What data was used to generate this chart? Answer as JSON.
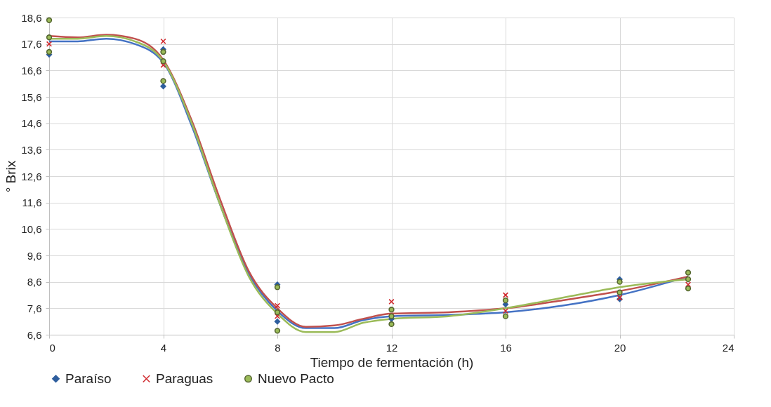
{
  "chart_data": {
    "type": "scatter",
    "xlabel": "Tiempo de fermentación (h)",
    "ylabel": "° Brix",
    "xlim": [
      0,
      24
    ],
    "xticks": [
      0,
      4,
      8,
      12,
      16,
      20,
      24
    ],
    "ylim": [
      6.6,
      18.6
    ],
    "yticks": [
      {
        "value": 6.6,
        "label": "6,6"
      },
      {
        "value": 7.6,
        "label": "7,6"
      },
      {
        "value": 8.6,
        "label": "8,6"
      },
      {
        "value": 9.6,
        "label": "9,6"
      },
      {
        "value": 10.6,
        "label": "10,6"
      },
      {
        "value": 11.6,
        "label": "11,6"
      },
      {
        "value": 12.6,
        "label": "12,6"
      },
      {
        "value": 13.6,
        "label": "13,6"
      },
      {
        "value": 14.6,
        "label": "14,6"
      },
      {
        "value": 15.6,
        "label": "15,6"
      },
      {
        "value": 16.6,
        "label": "16,6"
      },
      {
        "value": 17.6,
        "label": "17,6"
      },
      {
        "value": 18.6,
        "label": "18,6"
      }
    ],
    "grid": true,
    "legend": "bottom",
    "series": [
      {
        "type": "line",
        "color": "#4472c4",
        "x": [
          0,
          1,
          2,
          3,
          4,
          5,
          6,
          7,
          8,
          9,
          10,
          11,
          12,
          14,
          16,
          18,
          20,
          22.4
        ],
        "values": [
          17.7,
          17.7,
          17.8,
          17.6,
          16.9,
          14.5,
          11.5,
          8.9,
          7.5,
          6.85,
          6.85,
          7.15,
          7.3,
          7.35,
          7.45,
          7.7,
          8.1,
          8.8
        ]
      },
      {
        "type": "line",
        "color": "#c0504d",
        "x": [
          0,
          1,
          2,
          3,
          4,
          5,
          6,
          7,
          8,
          9,
          10,
          11,
          12,
          14,
          16,
          18,
          20,
          22.4
        ],
        "values": [
          17.9,
          17.85,
          17.95,
          17.8,
          17.0,
          14.7,
          11.7,
          9.0,
          7.6,
          6.9,
          6.95,
          7.2,
          7.4,
          7.45,
          7.6,
          7.9,
          8.25,
          8.8
        ]
      },
      {
        "type": "line",
        "color": "#9bbb59",
        "x": [
          0,
          1,
          2,
          3,
          4,
          5,
          6,
          7,
          8,
          9,
          10,
          11,
          12,
          14,
          16,
          18,
          20,
          22.4
        ],
        "values": [
          17.8,
          17.8,
          17.9,
          17.7,
          16.95,
          14.6,
          11.5,
          8.8,
          7.4,
          6.7,
          6.7,
          7.05,
          7.2,
          7.3,
          7.6,
          8.0,
          8.4,
          8.7
        ]
      },
      {
        "name": "Paraíso",
        "color": "#2e5e9e",
        "marker": "diamond",
        "x": [
          0,
          4,
          4,
          8,
          8,
          12,
          16,
          20,
          20
        ],
        "values": [
          17.2,
          16.0,
          17.4,
          8.5,
          7.1,
          7.2,
          7.75,
          8.7,
          7.95
        ]
      },
      {
        "name": "Paraguas",
        "color": "#d0282d",
        "marker": "cross",
        "x": [
          0,
          4,
          4,
          8,
          8,
          12,
          16,
          16,
          20,
          22.4
        ],
        "values": [
          17.6,
          17.7,
          16.8,
          7.7,
          7.3,
          7.85,
          8.1,
          7.5,
          8.0,
          8.5
        ]
      },
      {
        "name": "Nuevo Pacto",
        "color": "#9bbb59",
        "marker": "circle",
        "x": [
          0,
          0,
          0,
          4,
          4,
          4,
          8,
          8,
          8,
          12,
          12,
          12,
          16,
          16,
          20,
          20,
          22.4,
          22.4,
          22.4
        ],
        "values": [
          18.5,
          17.85,
          17.3,
          17.3,
          16.95,
          16.2,
          8.4,
          7.45,
          6.75,
          7.55,
          7.3,
          7.0,
          7.9,
          7.3,
          8.6,
          8.2,
          8.95,
          8.7,
          8.35
        ]
      }
    ]
  }
}
